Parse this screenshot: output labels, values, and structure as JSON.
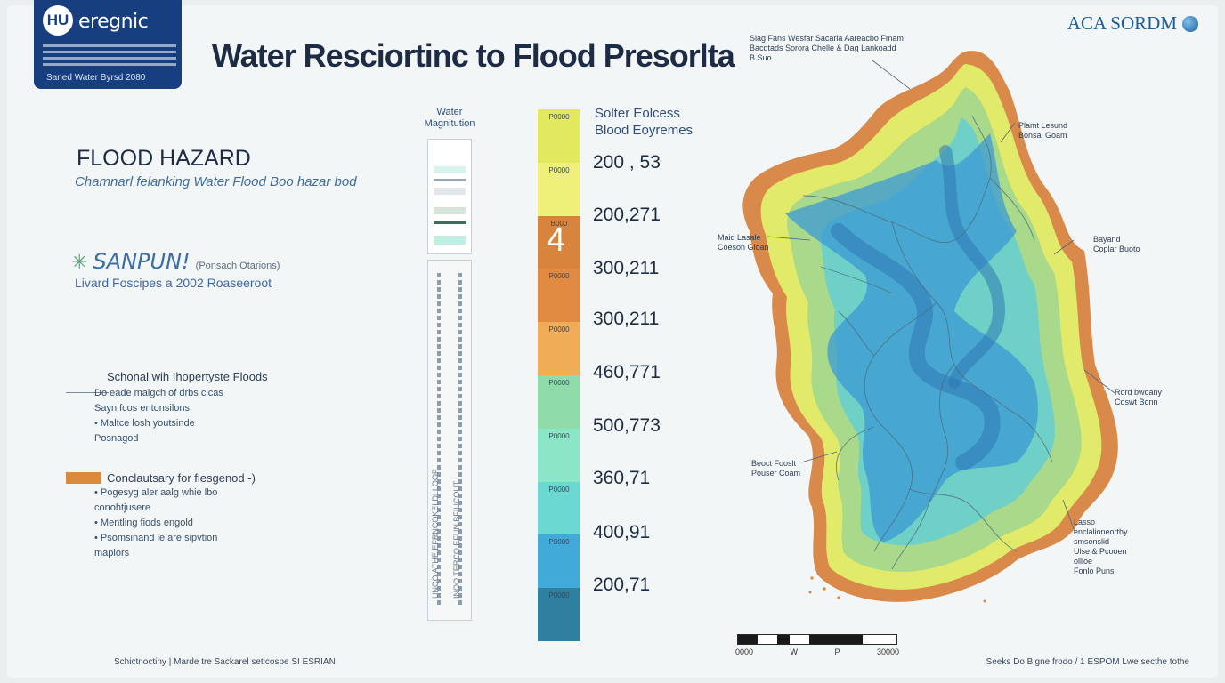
{
  "logo": {
    "mark": "HU",
    "brand": "eregnic",
    "sub": "Saned Water Byrsd 2080"
  },
  "top_brand": "ACA  SORDM",
  "title": "Water Resciortinc to Flood Presorlta",
  "hazard": {
    "heading": "FLOOD HAZARD",
    "subtitle": "Chamnarl felanking Water Flood Boo hazar bod"
  },
  "brand2": {
    "name": "SANPUN!",
    "tag": "(Ponsach Otarions)",
    "line": "Livard Foscipes a 2002 Roaseeroot"
  },
  "section1": {
    "title": "Schonal wih Ihopertyste Floods",
    "items": [
      "Do eade maigch of drbs clcas",
      "Sayn fcos entonsilons",
      "Maltce losh youtsinde",
      "Posnagod"
    ]
  },
  "section2": {
    "title": "Conclautsary for fiesgenod -)",
    "items": [
      "Pogesyg aler aalg whie lbo",
      "conohtjusere",
      "Mentling fiods engold",
      "Psomsinand le are sipvtion",
      "maplors"
    ],
    "swatch_color": "#d98c3c"
  },
  "water_magnitude": {
    "title": "Water Magnitution"
  },
  "gauge_text": [
    "UNCO ATHE EFRNCOKELDLLOOP",
    "INOO TERCO EFUN BFIUCOUT"
  ],
  "scale": {
    "header": [
      "Solter Eolcess",
      "Blood Eoyremes"
    ],
    "band_labels": [
      "P0000",
      "P0000",
      "B000",
      "P0000",
      "P0000",
      "P0000",
      "P0000",
      "P0000",
      "P0000",
      "P0000"
    ],
    "big_number": "4",
    "values": [
      "200 , 53",
      "200,271",
      "300,211",
      "300,211",
      "460,771",
      "500,773",
      "360,71",
      "400,91",
      "200,71"
    ],
    "colors": [
      "#e3e95e",
      "#eef07a",
      "#d9843c",
      "#e08a42",
      "#f0ac56",
      "#8fdcaa",
      "#8ae6c6",
      "#6cd8d2",
      "#42aad8",
      "#2f7fa0"
    ]
  },
  "map": {
    "callouts": [
      "Slag Fans Wesfar Sacaria Aareacbo Fmam",
      "Bacdtads Sorora Chelle & Dag Lankoadd",
      "B Suo",
      "Plamt Lesund",
      "Bonsal Goam",
      "Maid Lasale",
      "Coeson Gloan",
      "Bayand",
      "Coplar Buoto",
      "Rord bwoany",
      "Coswt Bonn",
      "Beoct Fooslt",
      "Pouser Coam",
      "Lasso",
      "enclalioneorthy",
      "smsonslid",
      "Ulse & Pcooen",
      "ollloe",
      "Fonlo Puns"
    ],
    "palette": {
      "edge": "#d9894a",
      "yellow": "#e2ea6a",
      "green": "#a9d98a",
      "teal": "#6ed0c6",
      "blue": "#3c9ad4"
    }
  },
  "scalebar": {
    "labels": [
      "0000",
      "W",
      "P",
      "30000"
    ]
  },
  "footer": {
    "left": "Schictnoctiny  |  Marde tre Sackarel seticospe SI ESRIAN",
    "right": "Seeks Do Bigne frodo  /  1 ESPOM Lwe secthe tothe"
  }
}
